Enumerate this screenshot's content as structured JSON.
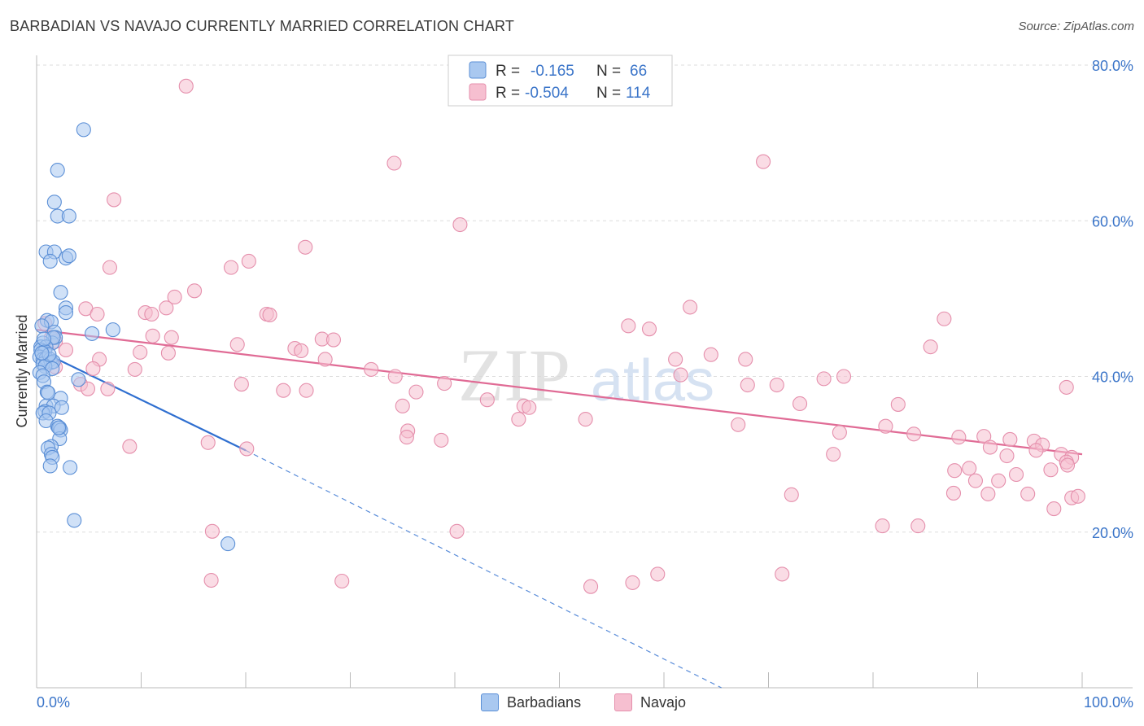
{
  "title": "BARBADIAN VS NAVAJO CURRENTLY MARRIED CORRELATION CHART",
  "source": "Source: ZipAtlas.com",
  "watermark": {
    "zip": "ZIP",
    "atlas": "atlas"
  },
  "colors": {
    "barbadian_fill": "#a9c8f0",
    "barbadian_stroke": "#5b8fd6",
    "barbadian_line": "#2f6fd0",
    "navajo_fill": "#f6bfd0",
    "navajo_stroke": "#e58fac",
    "navajo_line": "#e06b95",
    "value_text": "#3b75c9",
    "grid": "#dddddd"
  },
  "legend_box": {
    "rows": [
      {
        "r_label": "R =",
        "r_value": "-0.165",
        "n_label": "N =",
        "n_value": "66"
      },
      {
        "r_label": "R =",
        "r_value": "-0.504",
        "n_label": "N =",
        "n_value": "114"
      }
    ]
  },
  "legend_bottom": {
    "barbadians": "Barbadians",
    "navajo": "Navajo"
  },
  "chart_data": {
    "type": "scatter",
    "title": "BARBADIAN VS NAVAJO CURRENTLY MARRIED CORRELATION CHART",
    "xlabel": "",
    "ylabel": "Currently Married",
    "xlim": [
      0,
      100
    ],
    "ylim": [
      0,
      80
    ],
    "x_tick_labels": [
      {
        "value": 0,
        "label": "0.0%"
      },
      {
        "value": 100,
        "label": "100.0%"
      }
    ],
    "x_minor_ticks": [
      10,
      20,
      30,
      40,
      50,
      60,
      70,
      80,
      90,
      100
    ],
    "y_ticks": [
      {
        "value": 20,
        "label": "20.0%"
      },
      {
        "value": 40,
        "label": "40.0%"
      },
      {
        "value": 60,
        "label": "60.0%"
      },
      {
        "value": 80,
        "label": "80.0%"
      }
    ],
    "series": [
      {
        "name": "Barbadians",
        "r": -0.165,
        "n": 66,
        "trend": {
          "x0": 0,
          "y0": 43.5,
          "x1": 20,
          "y1": 30.5,
          "dash_to_x": 65.5,
          "dash_to_y": 0
        },
        "points": [
          [
            4.5,
            71.7
          ],
          [
            2.0,
            66.5
          ],
          [
            1.7,
            62.4
          ],
          [
            2.0,
            60.6
          ],
          [
            3.1,
            60.6
          ],
          [
            0.9,
            56.0
          ],
          [
            1.7,
            56.0
          ],
          [
            2.8,
            55.2
          ],
          [
            3.1,
            55.5
          ],
          [
            1.3,
            54.8
          ],
          [
            2.3,
            50.8
          ],
          [
            2.8,
            48.8
          ],
          [
            2.8,
            48.2
          ],
          [
            1.0,
            47.2
          ],
          [
            1.4,
            47.0
          ],
          [
            1.7,
            45.7
          ],
          [
            7.3,
            46.0
          ],
          [
            5.3,
            45.5
          ],
          [
            1.8,
            45.0
          ],
          [
            1.5,
            44.3
          ],
          [
            1.6,
            45.0
          ],
          [
            0.6,
            44.3
          ],
          [
            0.4,
            43.8
          ],
          [
            0.9,
            43.8
          ],
          [
            0.4,
            43.4
          ],
          [
            0.8,
            43.2
          ],
          [
            0.3,
            42.5
          ],
          [
            0.6,
            42.2
          ],
          [
            0.9,
            42.3
          ],
          [
            1.3,
            42.2
          ],
          [
            1.4,
            41.8
          ],
          [
            1.6,
            41.9
          ],
          [
            0.6,
            41.6
          ],
          [
            0.8,
            41.3
          ],
          [
            1.5,
            41.0
          ],
          [
            0.3,
            40.5
          ],
          [
            0.6,
            40.1
          ],
          [
            0.7,
            39.3
          ],
          [
            4.0,
            39.6
          ],
          [
            1.0,
            38.0
          ],
          [
            2.3,
            37.2
          ],
          [
            0.9,
            36.2
          ],
          [
            1.6,
            36.2
          ],
          [
            2.4,
            36.0
          ],
          [
            0.8,
            35.5
          ],
          [
            0.6,
            35.3
          ],
          [
            1.2,
            35.3
          ],
          [
            0.9,
            34.3
          ],
          [
            2.0,
            33.6
          ],
          [
            2.2,
            33.4
          ],
          [
            2.3,
            33.1
          ],
          [
            2.2,
            32.0
          ],
          [
            1.4,
            31.0
          ],
          [
            1.1,
            30.8
          ],
          [
            1.4,
            30.0
          ],
          [
            1.5,
            29.6
          ],
          [
            1.3,
            28.5
          ],
          [
            3.2,
            28.3
          ],
          [
            3.6,
            21.5
          ],
          [
            18.3,
            18.5
          ],
          [
            0.5,
            46.5
          ],
          [
            0.7,
            44.8
          ],
          [
            1.2,
            42.8
          ],
          [
            0.5,
            43.0
          ],
          [
            1.1,
            37.9
          ],
          [
            2.1,
            33.4
          ]
        ]
      },
      {
        "name": "Navajo",
        "r": -0.504,
        "n": 114,
        "trend": {
          "x0": 0,
          "y0": 46.0,
          "x1": 100,
          "y1": 30.0
        },
        "points": [
          [
            14.3,
            77.3
          ],
          [
            34.2,
            67.4
          ],
          [
            69.5,
            67.6
          ],
          [
            7.4,
            62.7
          ],
          [
            40.5,
            59.5
          ],
          [
            25.7,
            56.6
          ],
          [
            20.3,
            54.8
          ],
          [
            7.0,
            54.0
          ],
          [
            18.6,
            54.0
          ],
          [
            15.1,
            51.0
          ],
          [
            13.2,
            50.2
          ],
          [
            4.7,
            48.7
          ],
          [
            10.4,
            48.2
          ],
          [
            12.4,
            48.8
          ],
          [
            22.0,
            48.0
          ],
          [
            22.3,
            47.9
          ],
          [
            5.8,
            48.0
          ],
          [
            11.0,
            48.0
          ],
          [
            62.5,
            48.9
          ],
          [
            86.8,
            47.4
          ],
          [
            56.6,
            46.5
          ],
          [
            58.6,
            46.1
          ],
          [
            1.4,
            45.0
          ],
          [
            1.8,
            44.5
          ],
          [
            11.1,
            45.2
          ],
          [
            12.9,
            45.0
          ],
          [
            27.3,
            44.8
          ],
          [
            28.4,
            44.7
          ],
          [
            85.5,
            43.8
          ],
          [
            19.2,
            44.1
          ],
          [
            24.7,
            43.6
          ],
          [
            25.3,
            43.3
          ],
          [
            2.8,
            43.4
          ],
          [
            9.9,
            43.1
          ],
          [
            12.6,
            43.0
          ],
          [
            64.5,
            42.8
          ],
          [
            6.0,
            42.2
          ],
          [
            27.6,
            42.2
          ],
          [
            61.1,
            42.2
          ],
          [
            67.8,
            42.2
          ],
          [
            1.8,
            41.2
          ],
          [
            5.4,
            41.0
          ],
          [
            9.4,
            40.9
          ],
          [
            32.0,
            40.9
          ],
          [
            77.2,
            40.0
          ],
          [
            34.3,
            40.0
          ],
          [
            61.6,
            40.2
          ],
          [
            75.3,
            39.7
          ],
          [
            68.0,
            38.9
          ],
          [
            70.8,
            38.9
          ],
          [
            39.0,
            39.1
          ],
          [
            98.5,
            38.6
          ],
          [
            4.2,
            39.0
          ],
          [
            19.6,
            39.0
          ],
          [
            4.9,
            38.4
          ],
          [
            6.8,
            38.4
          ],
          [
            23.6,
            38.2
          ],
          [
            25.8,
            38.2
          ],
          [
            36.3,
            38.0
          ],
          [
            73.0,
            36.5
          ],
          [
            82.4,
            36.4
          ],
          [
            35.0,
            36.2
          ],
          [
            43.1,
            37.0
          ],
          [
            46.6,
            36.2
          ],
          [
            47.1,
            36.0
          ],
          [
            81.2,
            33.6
          ],
          [
            76.8,
            32.8
          ],
          [
            83.9,
            32.6
          ],
          [
            88.2,
            32.2
          ],
          [
            90.6,
            32.3
          ],
          [
            46.1,
            34.5
          ],
          [
            52.5,
            34.5
          ],
          [
            67.1,
            33.8
          ],
          [
            35.5,
            33.0
          ],
          [
            35.4,
            32.2
          ],
          [
            38.7,
            31.8
          ],
          [
            93.1,
            31.9
          ],
          [
            95.4,
            31.7
          ],
          [
            96.2,
            31.2
          ],
          [
            91.2,
            30.9
          ],
          [
            20.1,
            30.7
          ],
          [
            16.4,
            31.5
          ],
          [
            8.9,
            31.0
          ],
          [
            92.8,
            29.8
          ],
          [
            95.6,
            30.5
          ],
          [
            98.0,
            30.0
          ],
          [
            99.0,
            29.6
          ],
          [
            76.2,
            30.0
          ],
          [
            89.2,
            28.2
          ],
          [
            97.0,
            28.0
          ],
          [
            98.5,
            29.0
          ],
          [
            87.8,
            27.9
          ],
          [
            93.7,
            27.4
          ],
          [
            98.6,
            28.6
          ],
          [
            92.0,
            26.6
          ],
          [
            89.8,
            26.6
          ],
          [
            91.0,
            24.9
          ],
          [
            87.7,
            25.0
          ],
          [
            94.8,
            24.9
          ],
          [
            72.2,
            24.8
          ],
          [
            99.0,
            24.4
          ],
          [
            97.3,
            23.0
          ],
          [
            84.3,
            20.8
          ],
          [
            16.8,
            20.1
          ],
          [
            40.2,
            20.1
          ],
          [
            80.9,
            20.8
          ],
          [
            59.4,
            14.6
          ],
          [
            71.3,
            14.6
          ],
          [
            29.2,
            13.7
          ],
          [
            53.0,
            13.0
          ],
          [
            16.7,
            13.8
          ],
          [
            0.8,
            46.8
          ],
          [
            99.6,
            24.6
          ],
          [
            57.0,
            13.5
          ]
        ]
      }
    ]
  }
}
